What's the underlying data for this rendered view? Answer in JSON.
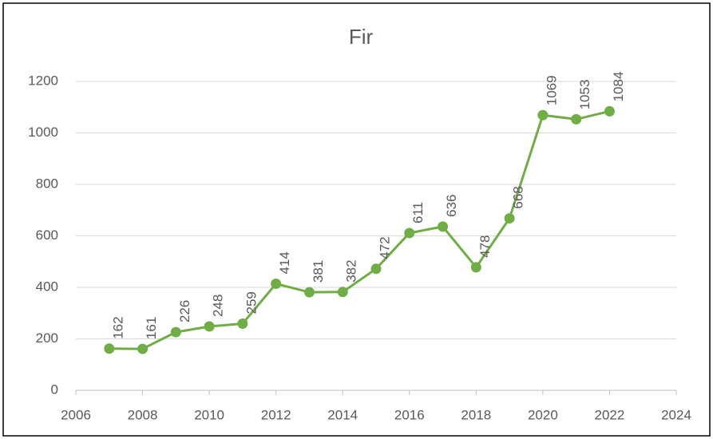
{
  "chart_data": {
    "type": "line",
    "title": "Fir",
    "x": [
      2007,
      2008,
      2009,
      2010,
      2011,
      2012,
      2013,
      2014,
      2015,
      2016,
      2017,
      2018,
      2019,
      2020,
      2021,
      2022
    ],
    "series": [
      {
        "name": "Fir",
        "color": "#70ad47",
        "values": [
          162,
          161,
          226,
          248,
          259,
          414,
          381,
          382,
          472,
          611,
          636,
          478,
          668,
          1069,
          1053,
          1084
        ]
      }
    ],
    "xlim": [
      2006,
      2024
    ],
    "xticks": [
      2006,
      2008,
      2010,
      2012,
      2014,
      2016,
      2018,
      2020,
      2022,
      2024
    ],
    "ylim": [
      0,
      1200
    ],
    "yticks": [
      0,
      200,
      400,
      600,
      800,
      1000,
      1200
    ],
    "grid": true,
    "data_labels": true
  }
}
